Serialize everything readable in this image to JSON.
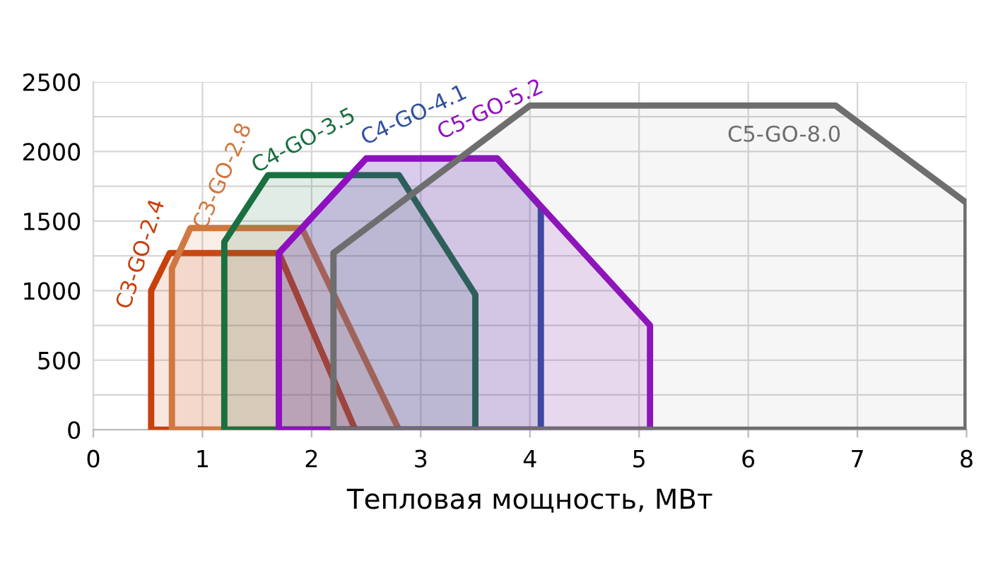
{
  "chart_data": {
    "type": "area",
    "xlabel": "Тепловая мощность, МВт",
    "series": [
      {
        "name": "C3-GO-2.4",
        "color": "#c8400c",
        "x": [
          0.53,
          0.53,
          0.7,
          1.7,
          2.4
        ],
        "values": [
          0,
          1000,
          1270,
          1270,
          0
        ]
      },
      {
        "name": "C3-GO-2.8",
        "color": "#d07840",
        "x": [
          0.72,
          0.72,
          0.89,
          1.91,
          2.8
        ],
        "values": [
          0,
          1160,
          1450,
          1450,
          0
        ]
      },
      {
        "name": "C4-GO-3.5",
        "color": "#1a7040",
        "x": [
          1.2,
          1.2,
          1.6,
          2.8,
          3.5,
          3.5
        ],
        "values": [
          0,
          1350,
          1830,
          1830,
          970,
          0
        ]
      },
      {
        "name": "C4-GO-4.1",
        "color": "#3050a0",
        "x": [
          1.7,
          1.7,
          2.5,
          3.7,
          4.1,
          4.1
        ],
        "values": [
          0,
          1270,
          1950,
          1950,
          1600,
          0
        ]
      },
      {
        "name": "C5-GO-5.2",
        "color": "#9010c0",
        "x": [
          1.7,
          1.7,
          2.5,
          3.7,
          5.1,
          5.1
        ],
        "values": [
          0,
          1270,
          1950,
          1950,
          750,
          0
        ]
      },
      {
        "name": "C5-GO-8.0",
        "color": "#6e6e6e",
        "x": [
          2.2,
          2.2,
          4.0,
          6.8,
          8.0,
          8.0
        ],
        "values": [
          0,
          1270,
          2330,
          2330,
          1630,
          0
        ]
      }
    ],
    "xlim": [
      0,
      8
    ],
    "xticks": [
      0,
      1,
      2,
      3,
      4,
      5,
      6,
      7,
      8
    ],
    "ylim": [
      0,
      2500
    ],
    "yticks": [
      0,
      {
        "value": 250,
        "label": null
      },
      500,
      {
        "value": 750,
        "label": null
      },
      1000,
      {
        "value": 1250,
        "label": null
      },
      1500,
      {
        "value": 1750,
        "label": null
      },
      2000,
      {
        "value": 2250,
        "label": null
      },
      2500
    ],
    "grid": true,
    "legend": false,
    "marker": "none",
    "line_style": "solid"
  }
}
